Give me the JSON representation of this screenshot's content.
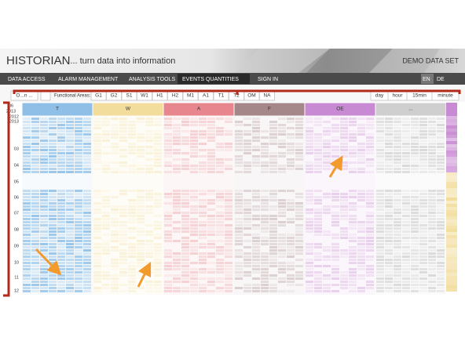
{
  "header": {
    "title": "HISTORIAN",
    "tagline": "... turn data into information",
    "dataset": "DEMO DATA SET"
  },
  "nav": {
    "items": [
      "DATA ACCESS",
      "ALARM MANAGEMENT",
      "ANALYSIS TOOLS",
      "EVENTS QUANTITIES",
      "SIGN IN"
    ],
    "active": 3,
    "languages": [
      "EN",
      "DE"
    ]
  },
  "toolbar": {
    "search": "O...n ...",
    "label": "Functional Areas:",
    "areas": [
      "G1",
      "G2",
      "S1",
      "W1",
      "H1",
      "H2",
      "M1",
      "A1",
      "T1",
      "T2",
      "OM",
      "NA"
    ],
    "resolutions": [
      "day",
      "hour",
      "15min",
      "minute"
    ]
  },
  "grid": {
    "corner": [
      "06",
      "2013"
    ],
    "columns": [
      {
        "name": "T",
        "color": "#8fbfe6"
      },
      {
        "name": "W",
        "color": "#f2dd9c"
      },
      {
        "name": "A",
        "color": "#e8868e"
      },
      {
        "name": "F",
        "color": "#a68789"
      },
      {
        "name": "OE",
        "color": "#c88ad2"
      },
      {
        "name": "...",
        "color": "#cfcfcf"
      }
    ],
    "rows": [
      "2012",
      "2013",
      "03",
      "04",
      "05",
      "06",
      "07",
      "08",
      "09",
      "10",
      "11",
      "12"
    ]
  }
}
